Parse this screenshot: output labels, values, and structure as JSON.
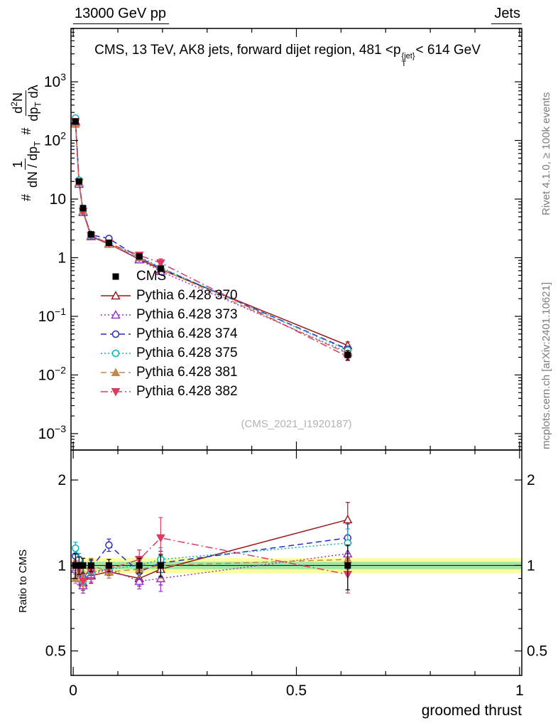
{
  "header": {
    "left": "13000 GeV pp",
    "right": "Jets"
  },
  "title": {
    "pre": "CMS, 13 TeV, AK8 jets, forward dijet region, 481 <p",
    "sup": "{jet}",
    "sub": "T",
    "post": "< 614 GeV"
  },
  "axis_labels": {
    "hash1": "#",
    "frac1_num": "1",
    "frac1_den_pre": "dN / dp",
    "frac1_den_sub": "T",
    "hash2": "#",
    "frac2_num_pre": "d",
    "frac2_num_sup": "2",
    "frac2_num_post": "N",
    "frac2_den_pre": "dp",
    "frac2_den_sub": "T",
    "frac2_den_post": " dλ",
    "ratio_y": "Ratio to CMS",
    "x": "groomed thrust"
  },
  "side_notes": {
    "top_right": "Rivet 4.1.0, ≥ 100k events",
    "bottom_right": "mcplots.cern.ch [arXiv:2401.10621]"
  },
  "watermark": "(CMS_2021_I1920187)",
  "chart_data": {
    "type": "line",
    "xlabel": "groomed thrust",
    "xlim": [
      -0.005,
      1.005
    ],
    "x_major_ticks": [
      0,
      0.5,
      1
    ],
    "main_loglim": [
      -3.28,
      3.91
    ],
    "y_major_ticks_exp": [
      3,
      2,
      1,
      0,
      -1,
      -2,
      -3
    ],
    "ratio_lim": [
      0.41,
      2.55
    ],
    "ratio_ticks": [
      0.5,
      1,
      2
    ],
    "x": [
      0.005,
      0.013,
      0.022,
      0.04,
      0.08,
      0.148,
      0.196,
      0.615
    ],
    "cms": {
      "label": "CMS",
      "marker": "square-filled",
      "color": "#000000",
      "values": [
        210,
        20,
        7,
        2.5,
        1.8,
        1.05,
        0.65,
        0.022
      ],
      "rel_err": [
        0.1,
        0.07,
        0.06,
        0.05,
        0.05,
        0.06,
        0.09,
        0.18
      ]
    },
    "series": [
      {
        "label": "Pythia 6.428 370",
        "color": "#9a1c1c",
        "line": "solid",
        "marker": "triangle-open",
        "ratio": [
          1.02,
          0.95,
          0.87,
          0.92,
          0.95,
          0.9,
          0.97,
          1.45
        ],
        "ratio_err": [
          0.04,
          0.05,
          0.06,
          0.06,
          0.05,
          0.06,
          0.12,
          0.15
        ]
      },
      {
        "label": "Pythia 6.428 373",
        "color": "#9933cc",
        "line": "dotted",
        "marker": "triangle-open",
        "ratio": [
          0.97,
          0.9,
          0.85,
          0.93,
          0.97,
          0.88,
          0.9,
          1.1
        ],
        "ratio_err": [
          0.04,
          0.05,
          0.06,
          0.06,
          0.05,
          0.06,
          0.1,
          0.12
        ]
      },
      {
        "label": "Pythia 6.428 374",
        "color": "#2929c8",
        "line": "dashed",
        "marker": "circle-open",
        "ratio": [
          1.08,
          1.02,
          0.9,
          0.98,
          1.18,
          0.95,
          1.02,
          1.25
        ],
        "ratio_err": [
          0.04,
          0.05,
          0.06,
          0.06,
          0.05,
          0.06,
          0.1,
          0.12
        ]
      },
      {
        "label": "Pythia 6.428 375",
        "color": "#00b8b8",
        "line": "dotted",
        "marker": "circle-open",
        "ratio": [
          1.15,
          1.05,
          0.88,
          0.95,
          0.97,
          1.0,
          1.05,
          1.2
        ],
        "ratio_err": [
          0.05,
          0.05,
          0.06,
          0.06,
          0.05,
          0.06,
          0.1,
          0.12
        ]
      },
      {
        "label": "Pythia 6.428 381",
        "color": "#c08a4e",
        "line": "dashed",
        "marker": "triangle-filled",
        "ratio": [
          0.9,
          0.95,
          0.9,
          1.0,
          0.95,
          0.97,
          1.0,
          1.05
        ],
        "ratio_err": [
          0.04,
          0.05,
          0.06,
          0.06,
          0.05,
          0.06,
          0.1,
          0.12
        ]
      },
      {
        "label": "Pythia 6.428 382",
        "color": "#dc3b62",
        "line": "dashdot",
        "marker": "triangle-down-filled",
        "ratio": [
          1.0,
          0.97,
          0.88,
          0.95,
          0.97,
          1.05,
          1.25,
          0.93
        ],
        "ratio_err": [
          0.04,
          0.05,
          0.06,
          0.06,
          0.05,
          0.08,
          0.18,
          0.14
        ]
      }
    ],
    "band": {
      "yellow": [
        0.94,
        1.06
      ],
      "green": [
        0.97,
        1.03
      ],
      "yellow_color": "#ffff9a",
      "green_color": "#9fe89f"
    }
  }
}
